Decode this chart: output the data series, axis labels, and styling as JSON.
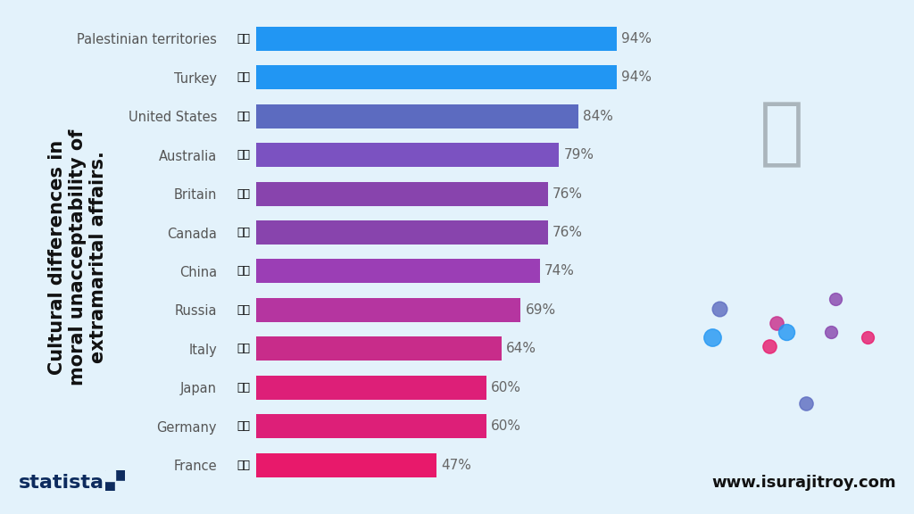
{
  "countries": [
    "Palestinian territories",
    "Turkey",
    "United States",
    "Australia",
    "Britain",
    "Canada",
    "China",
    "Russia",
    "Italy",
    "Japan",
    "Germany",
    "France"
  ],
  "values": [
    94,
    94,
    84,
    79,
    76,
    76,
    74,
    69,
    64,
    60,
    60,
    47
  ],
  "bar_colors": [
    "#2196F3",
    "#2196F3",
    "#5C6BC0",
    "#7B52C1",
    "#8844AD",
    "#8844AD",
    "#9B3EB5",
    "#B535A0",
    "#C82C8A",
    "#DD1F78",
    "#DD1F78",
    "#E8196B"
  ],
  "background_color": "#E3F2FB",
  "title_text": "Cultural differences in\nmoral unacceptability of\nextramarital affairs.",
  "title_fontsize": 15,
  "value_fontsize": 11,
  "country_fontsize": 10.5,
  "statista_text": "statista",
  "website_text": "www.isurajitroy.com",
  "xlim": [
    0,
    100
  ],
  "flag_emojis": [
    "🇵🇸",
    "🇹🇷",
    "🇺🇸",
    "🇦🇺",
    "🇬🇧",
    "🇨🇦",
    "🇨🇳",
    "🇷🇺",
    "🇮🇹",
    "🇯🇵",
    "🇩🇪",
    "🇫🇷"
  ]
}
